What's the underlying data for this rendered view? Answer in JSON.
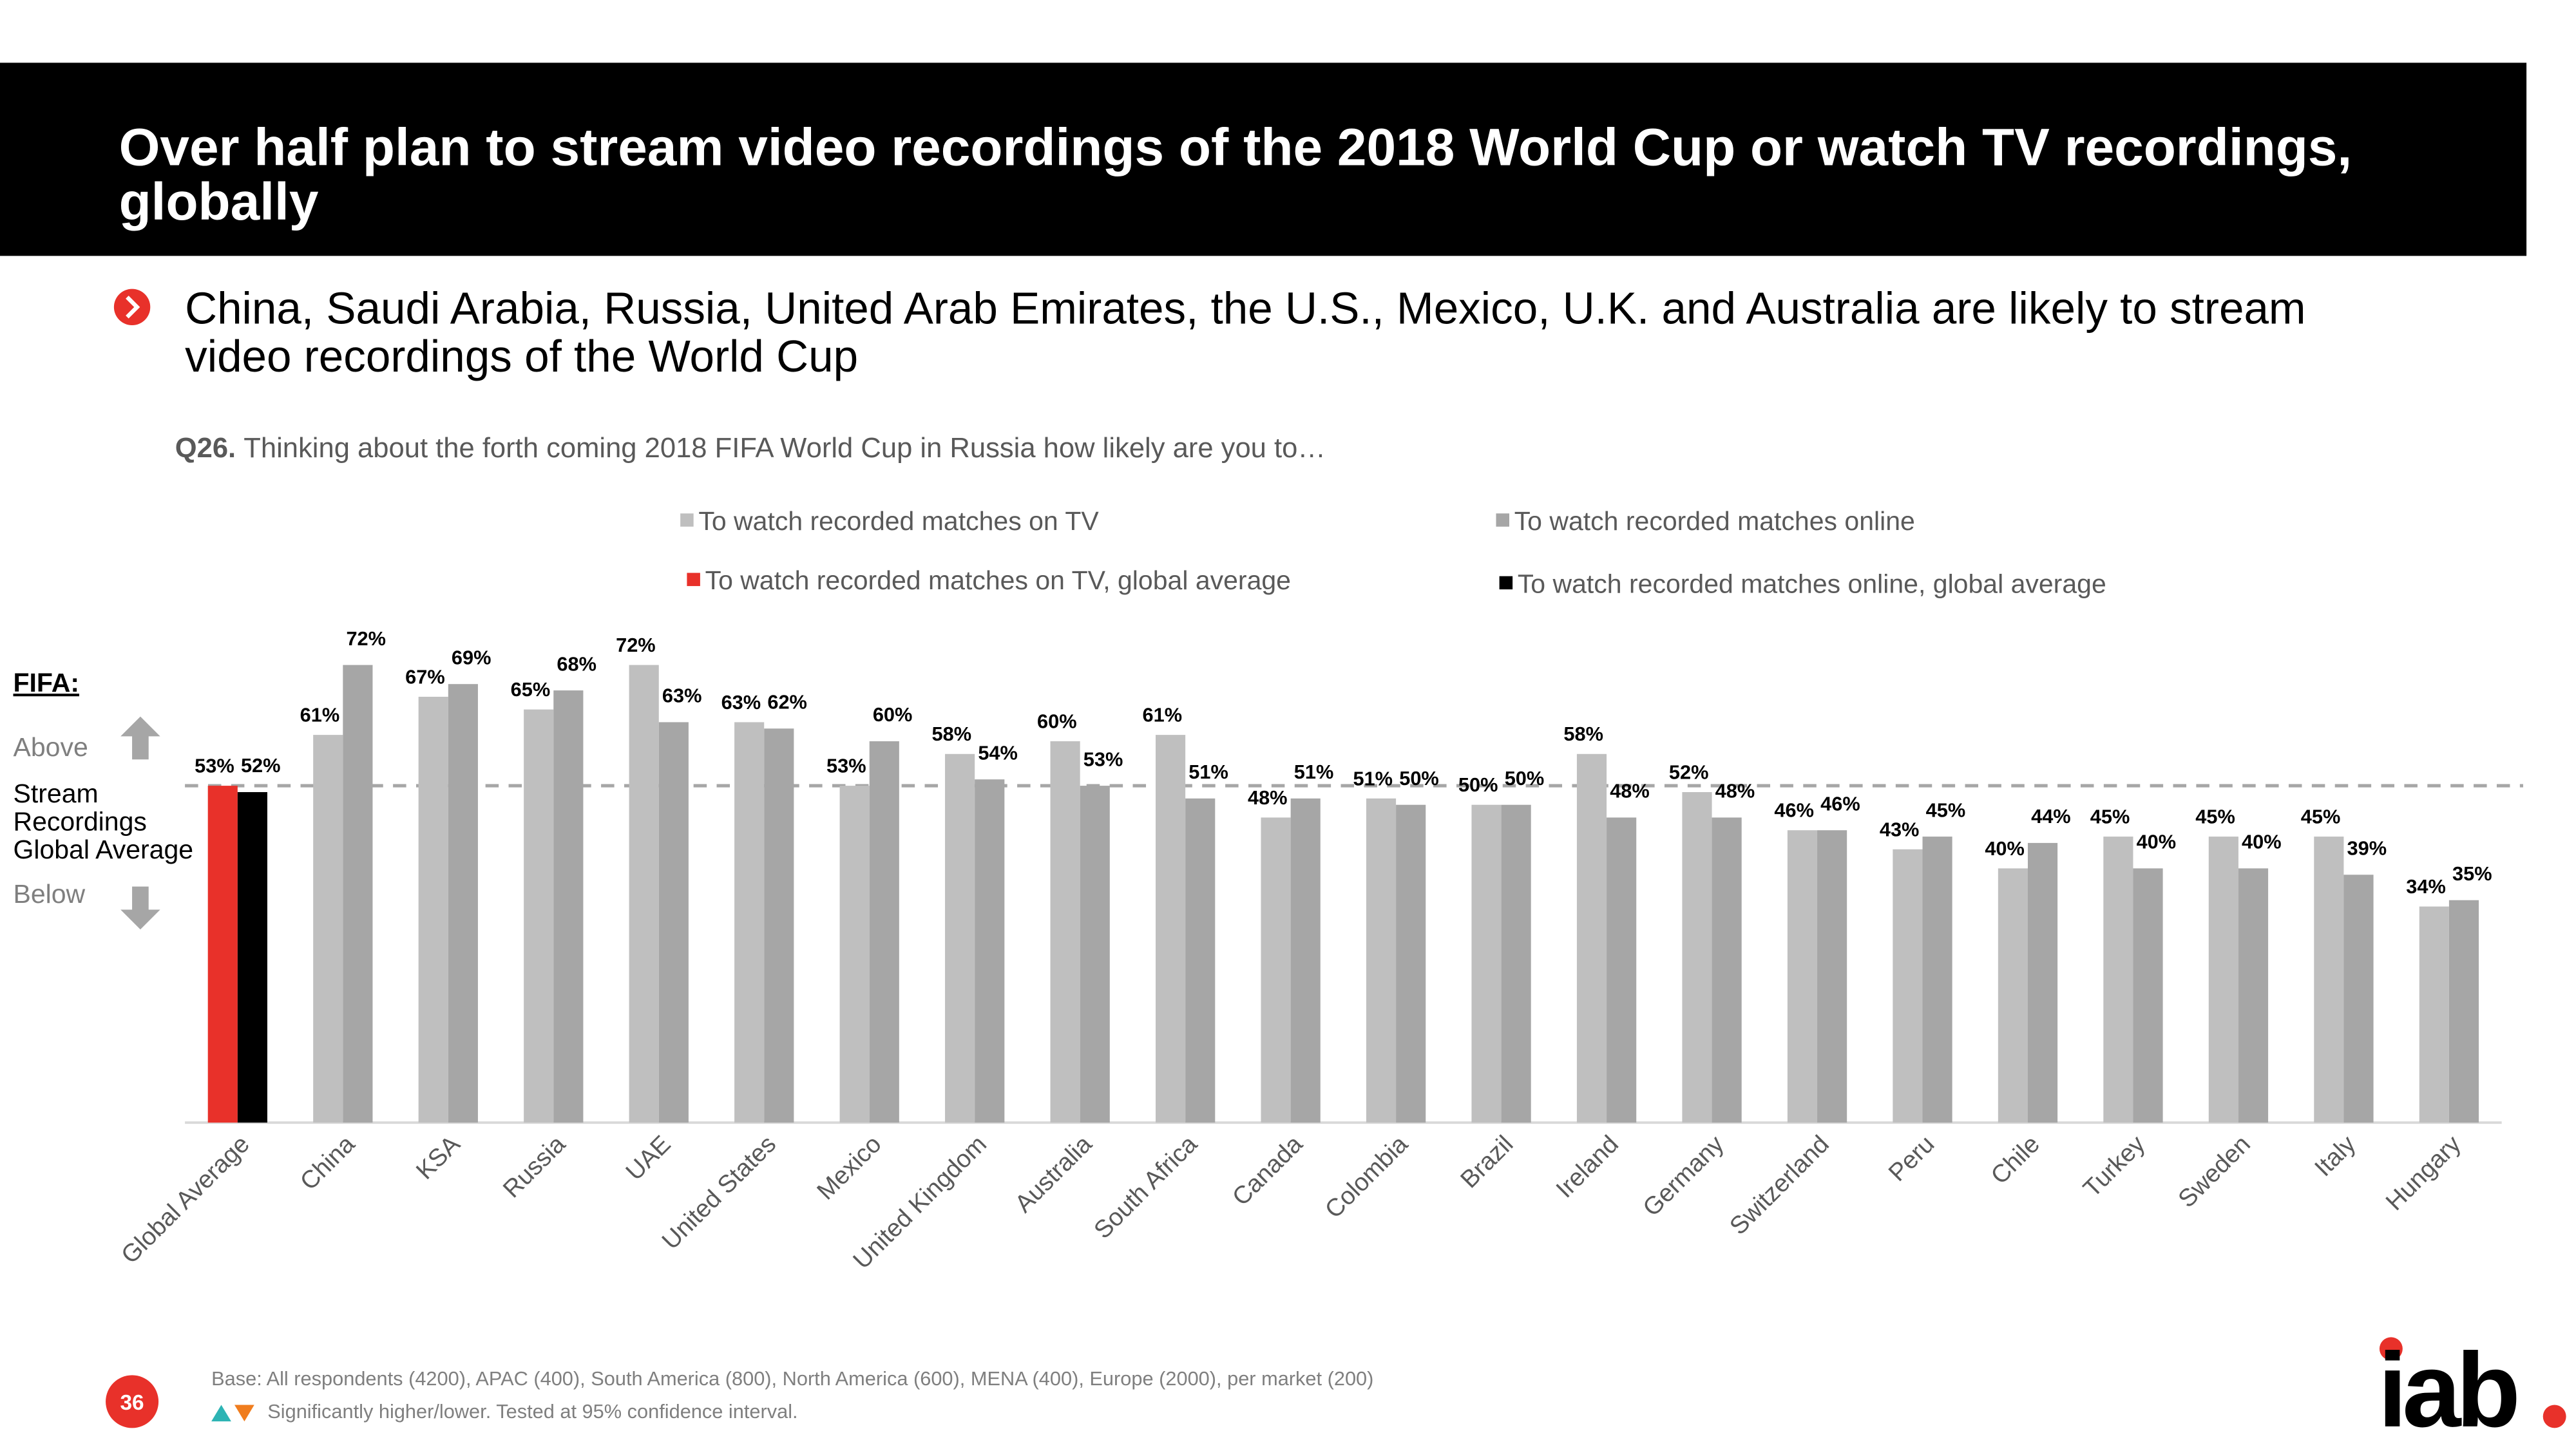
{
  "title_lines": [
    "Over half plan to stream video recordings of the 2018 World Cup or watch TV recordings,",
    "globally"
  ],
  "bullet_lines": [
    "China, Saudi Arabia, Russia, United Arab Emirates, the U.S., Mexico, U.K. and Australia are likely to stream",
    "video recordings of the World Cup"
  ],
  "question": {
    "code": "Q26.",
    "text": "Thinking about the forth coming 2018 FIFA World Cup in Russia how likely are you to…"
  },
  "side_label": {
    "title": "FIFA:",
    "above": "Above",
    "lines": [
      "Stream",
      "Recordings",
      "Global Average"
    ],
    "below": "Below"
  },
  "footer": {
    "base": "Base: All respondents (4200), APAC (400), South America (800), North America (600), MENA (400), Europe (2000), per market (200)",
    "significance": "Significantly higher/lower. Tested at 95% confidence interval.",
    "page_number": "36",
    "logo": "iab"
  },
  "chart_data": {
    "type": "bar",
    "ylim": [
      0,
      100
    ],
    "categories": [
      "Global Average",
      "China",
      "KSA",
      "Russia",
      "UAE",
      "United States",
      "Mexico",
      "United Kingdom",
      "Australia",
      "South Africa",
      "Canada",
      "Colombia",
      "Brazil",
      "Ireland",
      "Germany",
      "Switzerland",
      "Peru",
      "Chile",
      "Turkey",
      "Sweden",
      "Italy",
      "Hungary"
    ],
    "series": [
      {
        "name": "To watch recorded matches on TV",
        "color": "#bfbfbf",
        "values": [
          null,
          61,
          67,
          65,
          72,
          63,
          53,
          58,
          60,
          61,
          48,
          51,
          50,
          58,
          52,
          46,
          43,
          40,
          45,
          45,
          45,
          34
        ],
        "value_labels": [
          null,
          "61%",
          "67%",
          "65%",
          "72%",
          "63%",
          "53%",
          "58%",
          "60%",
          "61%",
          "48%",
          "51%",
          "50%",
          "58%",
          "52%",
          "46%",
          "43%",
          "40%",
          "45%",
          "45%",
          "45%",
          "34%"
        ]
      },
      {
        "name": "To watch recorded matches online",
        "color": "#a6a6a6",
        "values": [
          null,
          72,
          69,
          68,
          63,
          62,
          60,
          54,
          53,
          51,
          51,
          50,
          50,
          48,
          48,
          46,
          45,
          44,
          40,
          40,
          39,
          35
        ],
        "value_labels": [
          null,
          "72%",
          "69%",
          "68%",
          "63%",
          "62%",
          "60%",
          "54%",
          "53%",
          "51%",
          "51%",
          "50%",
          "50%",
          "48%",
          "48%",
          "46%",
          "45%",
          "44%",
          "40%",
          "40%",
          "39%",
          "35%"
        ]
      },
      {
        "name": "To watch recorded matches on TV, global average",
        "color": "#e8312a",
        "values": [
          53,
          null,
          null,
          null,
          null,
          null,
          null,
          null,
          null,
          null,
          null,
          null,
          null,
          null,
          null,
          null,
          null,
          null,
          null,
          null,
          null,
          null
        ],
        "value_labels": [
          "53%",
          null,
          null,
          null,
          null,
          null,
          null,
          null,
          null,
          null,
          null,
          null,
          null,
          null,
          null,
          null,
          null,
          null,
          null,
          null,
          null,
          null
        ]
      },
      {
        "name": "To watch recorded matches online, global average",
        "color": "#000000",
        "values": [
          52,
          null,
          null,
          null,
          null,
          null,
          null,
          null,
          null,
          null,
          null,
          null,
          null,
          null,
          null,
          null,
          null,
          null,
          null,
          null,
          null,
          null
        ],
        "value_labels": [
          "52%",
          null,
          null,
          null,
          null,
          null,
          null,
          null,
          null,
          null,
          null,
          null,
          null,
          null,
          null,
          null,
          null,
          null,
          null,
          null,
          null,
          null
        ]
      }
    ]
  }
}
